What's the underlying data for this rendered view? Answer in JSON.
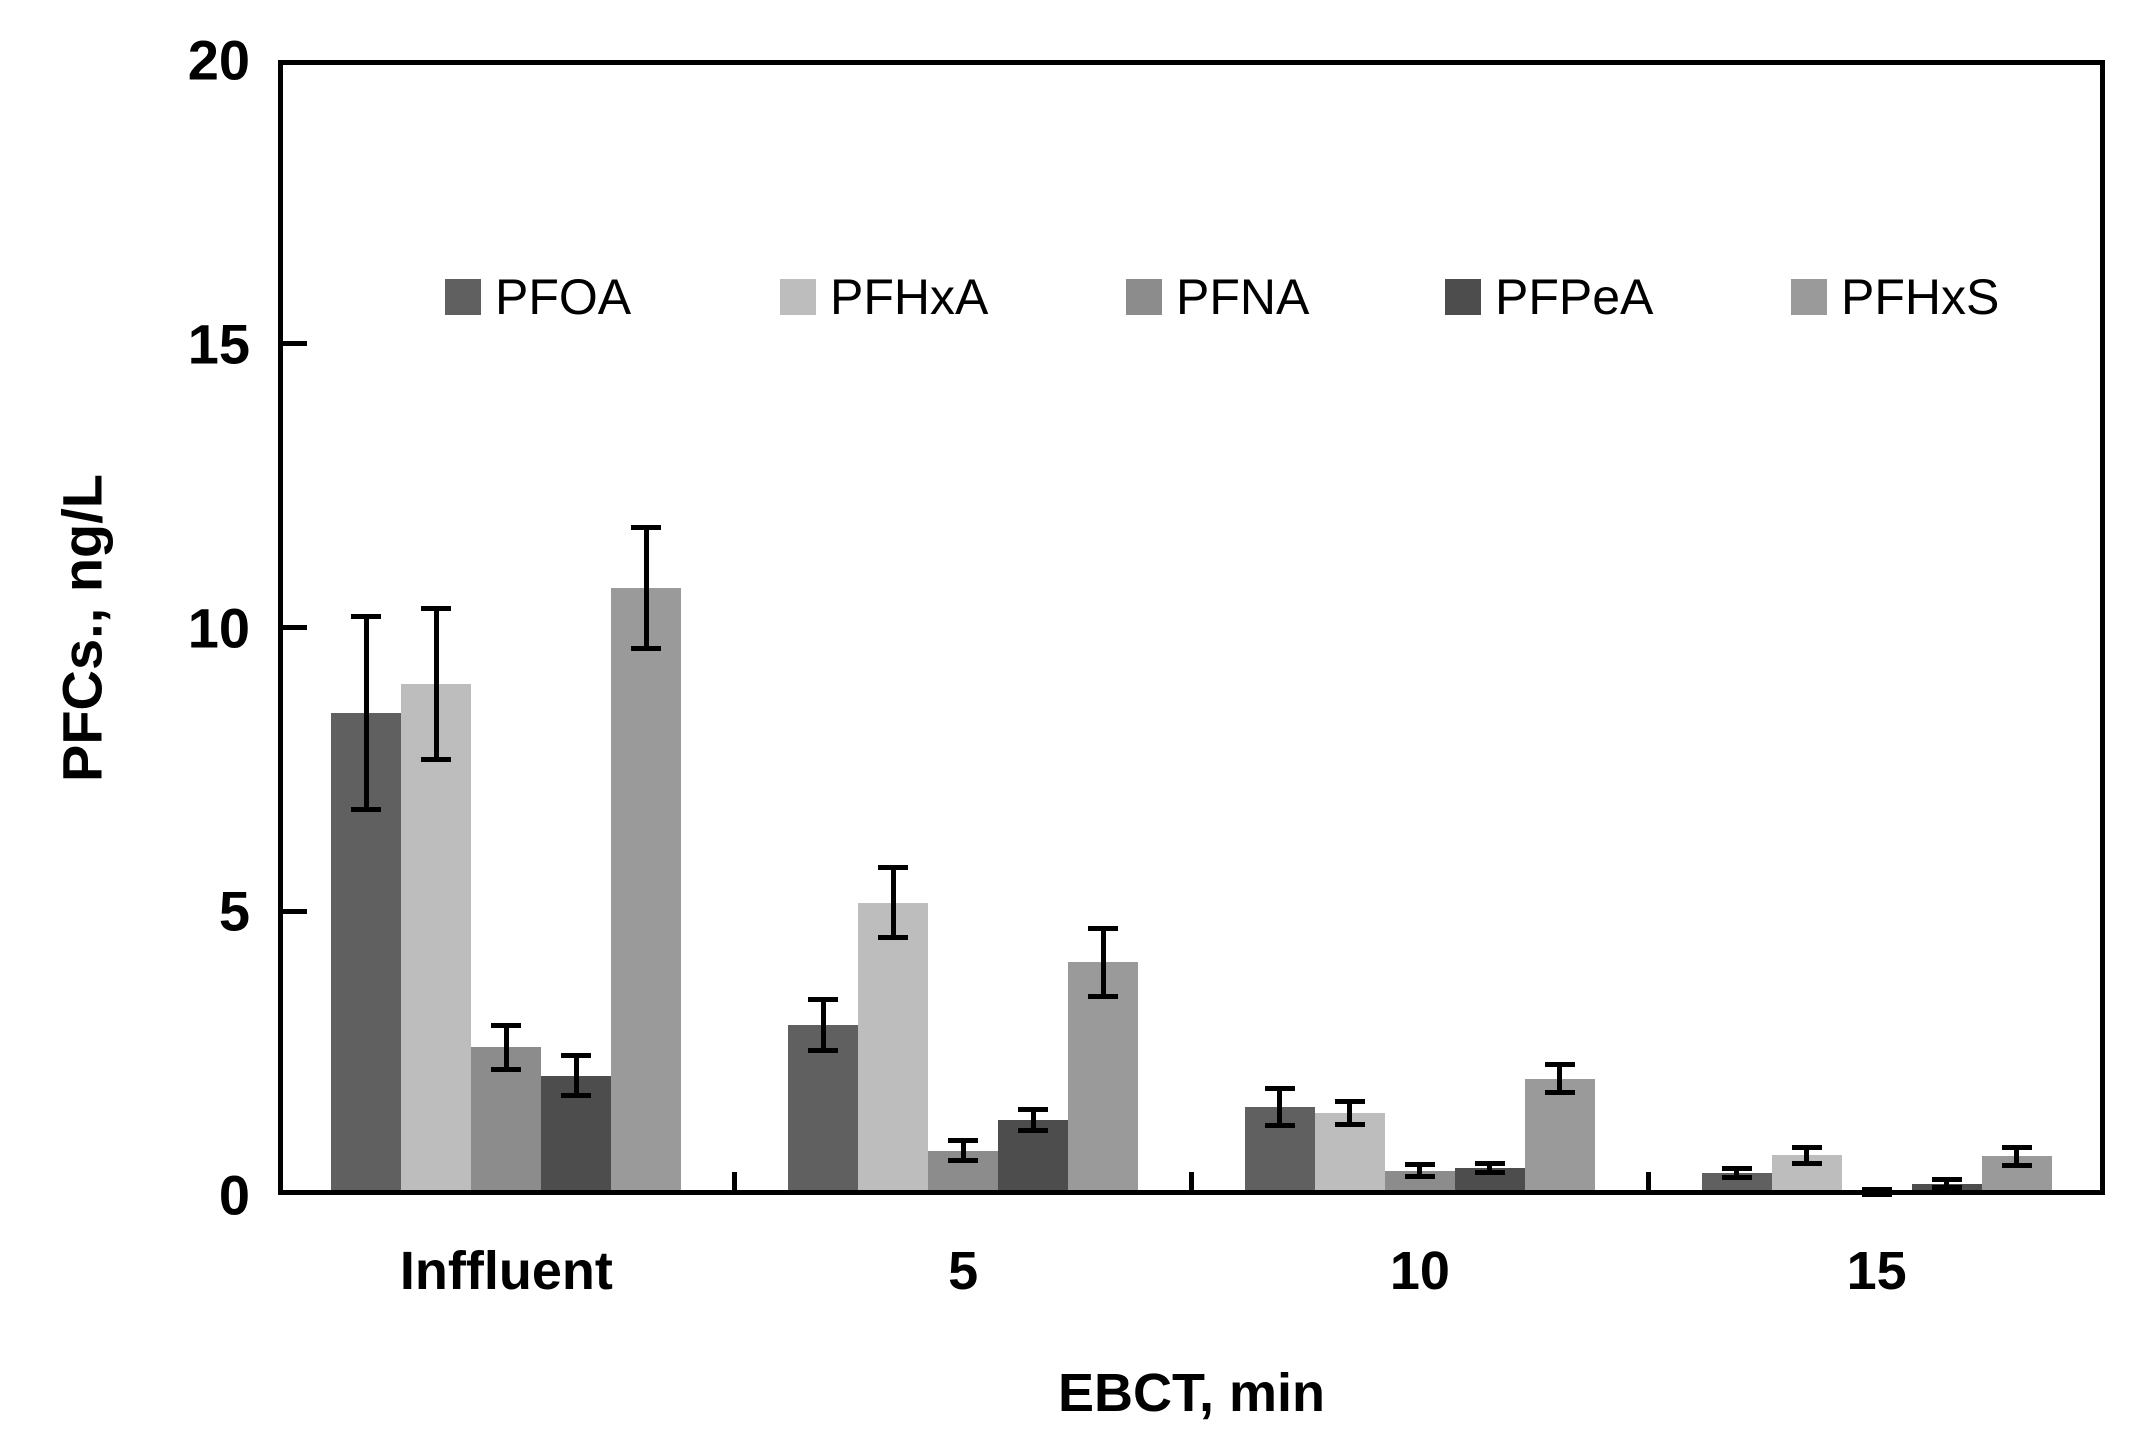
{
  "chart_data": {
    "type": "bar",
    "title": "",
    "xlabel": "EBCT, min",
    "ylabel": "PFCs., ng/L",
    "categories": [
      "Inffluent",
      "5",
      "10",
      "15"
    ],
    "ylim": [
      0,
      20
    ],
    "y_ticks": [
      0,
      5,
      10,
      15,
      20
    ],
    "grid": false,
    "error_bars": true,
    "legend_position": "top-inside-row",
    "series": [
      {
        "name": "PFOA",
        "color": "#606060",
        "values": [
          8.5,
          3.0,
          1.55,
          0.38
        ],
        "errors": [
          1.7,
          0.45,
          0.33,
          0.08
        ]
      },
      {
        "name": "PFHxA",
        "color": "#bdbdbd",
        "values": [
          9.0,
          5.15,
          1.44,
          0.7
        ],
        "errors": [
          1.33,
          0.62,
          0.2,
          0.14
        ]
      },
      {
        "name": "PFNA",
        "color": "#8c8c8c",
        "values": [
          2.6,
          0.78,
          0.43,
          0.05
        ],
        "errors": [
          0.38,
          0.18,
          0.1,
          0.04
        ]
      },
      {
        "name": "PFPeA",
        "color": "#4d4d4d",
        "values": [
          2.1,
          1.32,
          0.48,
          0.2
        ],
        "errors": [
          0.35,
          0.18,
          0.08,
          0.07
        ]
      },
      {
        "name": "PFHxS",
        "color": "#9a9a9a",
        "values": [
          10.7,
          4.1,
          2.05,
          0.68
        ],
        "errors": [
          1.07,
          0.6,
          0.25,
          0.16
        ]
      }
    ]
  }
}
